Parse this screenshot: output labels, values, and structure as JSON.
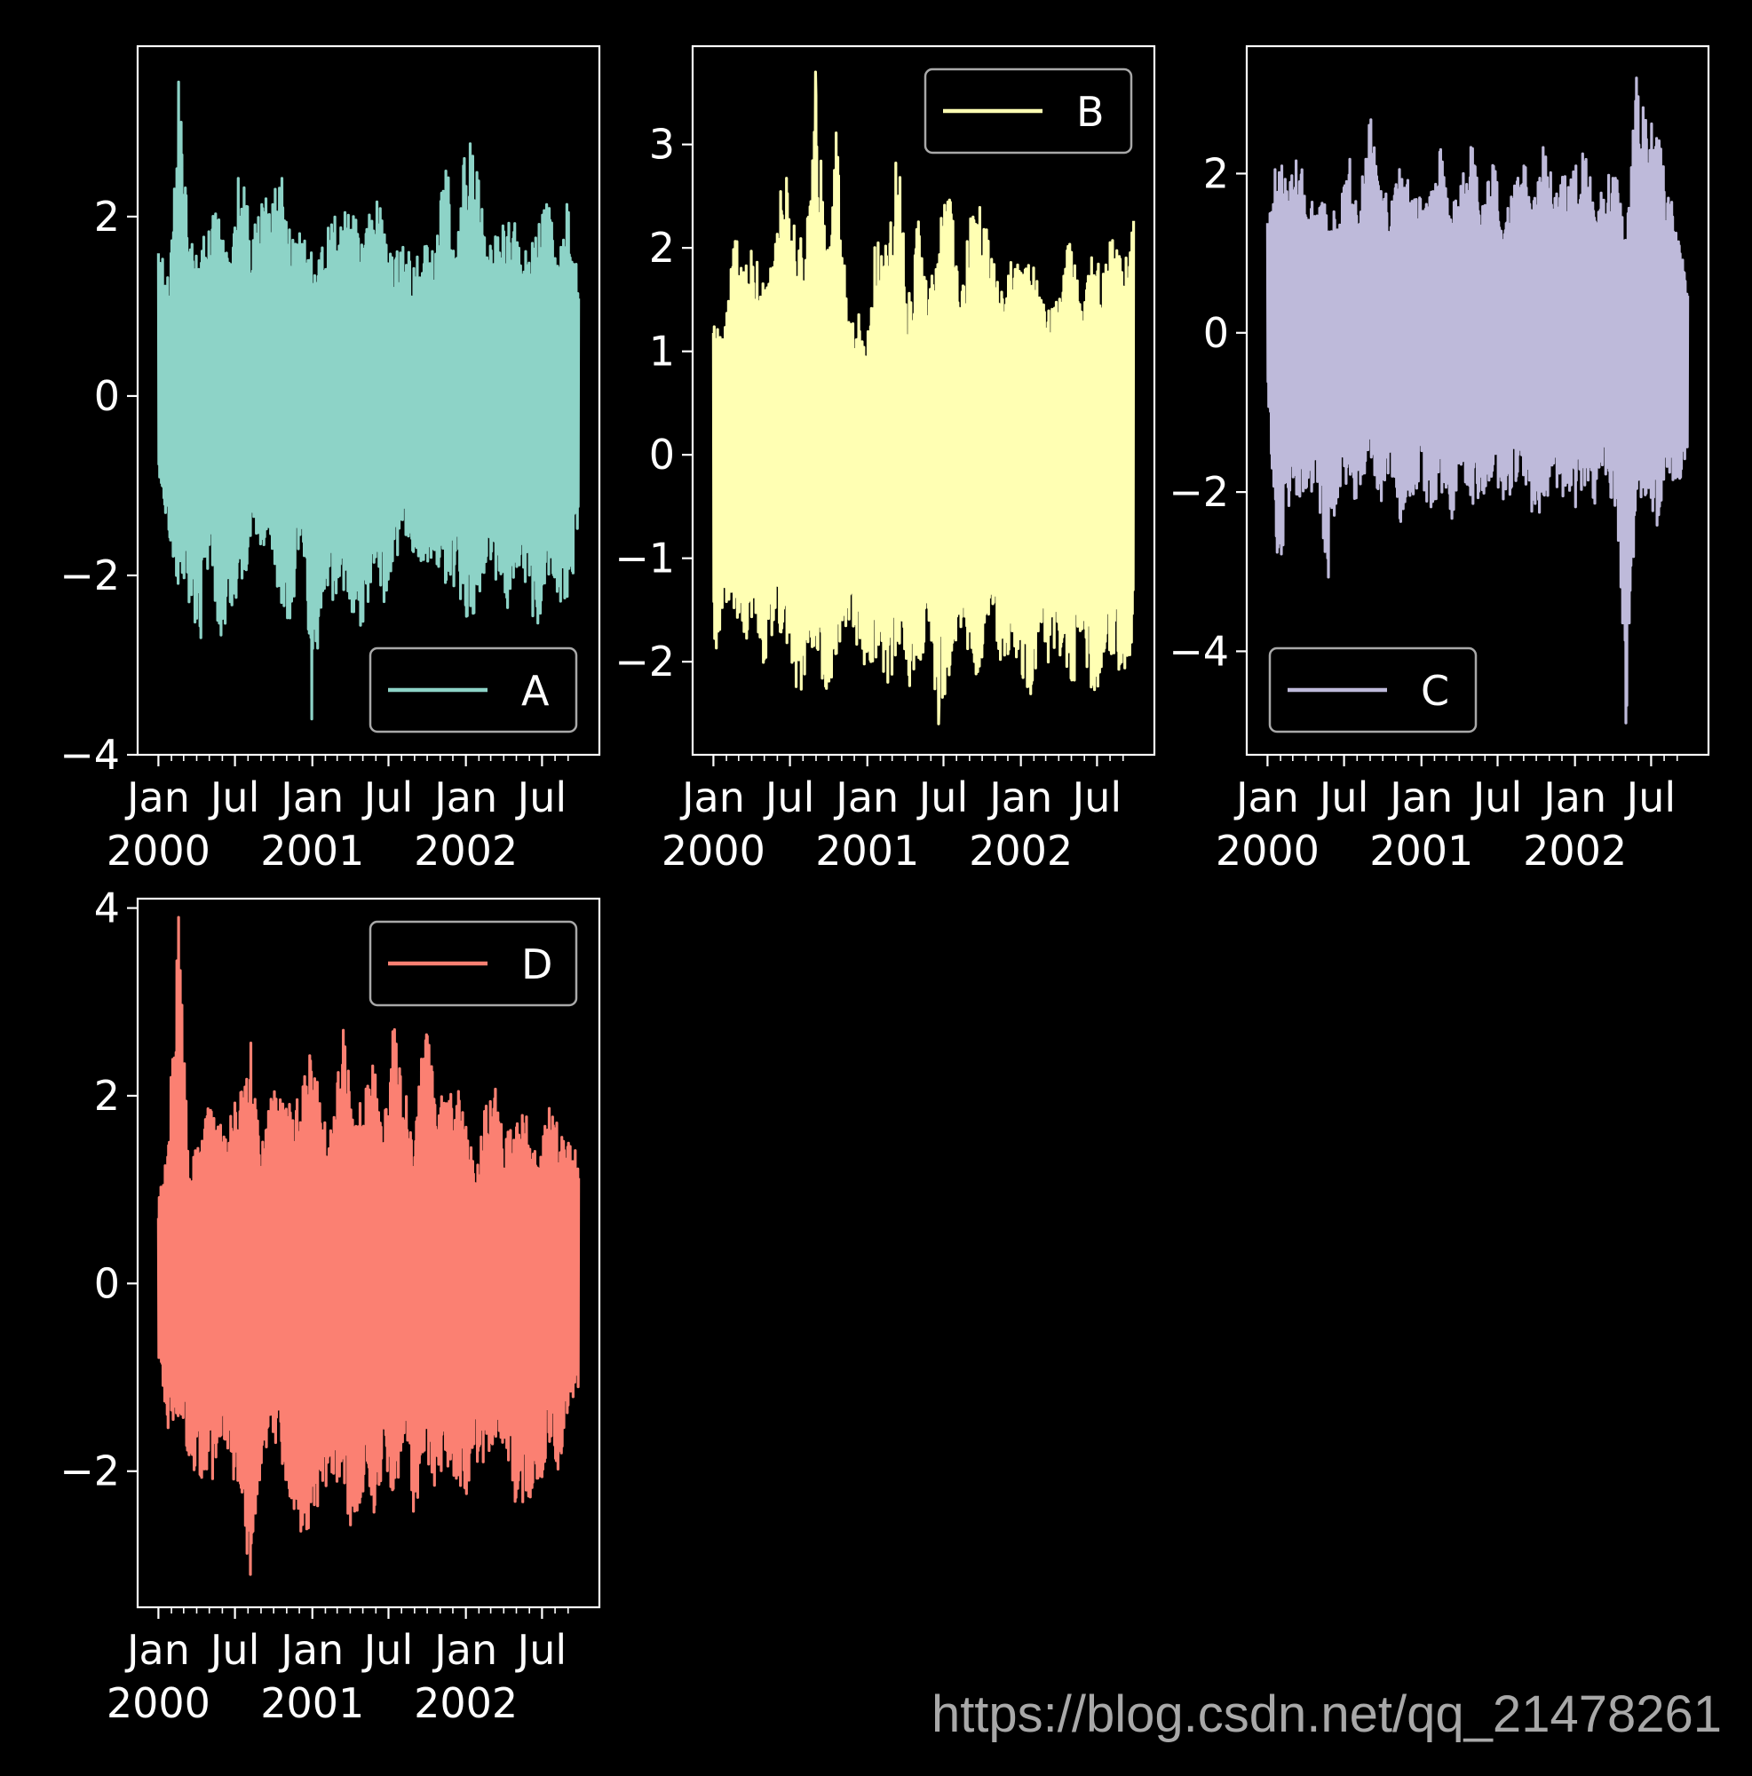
{
  "chart_data": [
    {
      "type": "line",
      "series": [
        {
          "name": "A",
          "color": "#8dd3c7"
        }
      ],
      "x_range": [
        "2000-01-01",
        "2002-09-26"
      ],
      "x_ticks": [
        {
          "month": "Jan",
          "year": "2000",
          "date": "2000-01-01"
        },
        {
          "month": "Jul",
          "year": "",
          "date": "2000-07-01"
        },
        {
          "month": "Jan",
          "year": "2001",
          "date": "2001-01-01"
        },
        {
          "month": "Jul",
          "year": "",
          "date": "2001-07-01"
        },
        {
          "month": "Jan",
          "year": "2002",
          "date": "2002-01-01"
        },
        {
          "month": "Jul",
          "year": "",
          "date": "2002-07-01"
        }
      ],
      "ylim": [
        -4,
        3.9
      ],
      "y_ticks": [
        -4,
        -2,
        0,
        2
      ],
      "y_tick_labels": [
        "−4",
        "−2",
        "0",
        "2"
      ],
      "envelope": {
        "upper": [
          1.7,
          1.3,
          3.5,
          1.8,
          1.6,
          2.1,
          2.0,
          1.5,
          2.7,
          1.9,
          2.3,
          2.1,
          2.7,
          1.8,
          1.9,
          1.6,
          1.8,
          2.0,
          2.2,
          2.1,
          1.7,
          2.5,
          1.9,
          1.6,
          1.7,
          1.5,
          1.7,
          1.6,
          2.8,
          1.7,
          2.9,
          2.8,
          1.6,
          1.8,
          2.0,
          1.9,
          1.6,
          1.9,
          2.2,
          1.5,
          2.4,
          1.2
        ],
        "lower": [
          -1.0,
          -1.6,
          -2.2,
          -2.3,
          -2.9,
          -1.7,
          -2.8,
          -2.4,
          -2.5,
          -1.6,
          -1.7,
          -1.7,
          -2.5,
          -2.6,
          -1.4,
          -3.6,
          -2.3,
          -2.4,
          -2.2,
          -2.5,
          -2.6,
          -2.1,
          -2.3,
          -2.0,
          -1.6,
          -1.8,
          -1.9,
          -2.1,
          -2.1,
          -2.2,
          -2.5,
          -2.6,
          -1.8,
          -2.1,
          -2.4,
          -2.0,
          -2.2,
          -2.7,
          -2.0,
          -2.3,
          -2.4,
          -1.5
        ]
      },
      "extremes": {
        "max": 3.5,
        "min": -3.6
      },
      "legend_loc": "lower right"
    },
    {
      "type": "line",
      "series": [
        {
          "name": "B",
          "color": "#ffffb3"
        }
      ],
      "x_range": [
        "2000-01-01",
        "2002-09-26"
      ],
      "x_ticks": [
        {
          "month": "Jan",
          "year": "2000",
          "date": "2000-01-01"
        },
        {
          "month": "Jul",
          "year": "",
          "date": "2000-07-01"
        },
        {
          "month": "Jan",
          "year": "2001",
          "date": "2001-01-01"
        },
        {
          "month": "Jul",
          "year": "",
          "date": "2001-07-01"
        },
        {
          "month": "Jan",
          "year": "2002",
          "date": "2002-01-01"
        },
        {
          "month": "Jul",
          "year": "",
          "date": "2002-07-01"
        }
      ],
      "ylim": [
        -2.9,
        3.95
      ],
      "y_ticks": [
        -2,
        -1,
        0,
        1,
        2,
        3
      ],
      "y_tick_labels": [
        "−2",
        "−1",
        "0",
        "1",
        "2",
        "3"
      ],
      "envelope": {
        "upper": [
          1.3,
          1.1,
          2.2,
          1.9,
          2.0,
          1.6,
          2.1,
          2.9,
          2.2,
          2.1,
          3.7,
          2.0,
          3.2,
          1.5,
          1.4,
          1.2,
          2.3,
          2.0,
          3.1,
          1.5,
          2.4,
          1.6,
          2.2,
          2.9,
          1.7,
          2.3,
          2.4,
          2.1,
          1.5,
          2.1,
          1.8,
          1.9,
          1.6,
          1.4,
          1.7,
          2.3,
          1.3,
          2.1,
          1.8,
          2.2,
          1.8,
          2.3
        ],
        "lower": [
          -2.2,
          -1.4,
          -1.5,
          -1.9,
          -1.5,
          -2.1,
          -1.7,
          -1.8,
          -2.3,
          -2.3,
          -1.8,
          -2.4,
          -2.2,
          -1.7,
          -1.9,
          -2.1,
          -2.0,
          -2.4,
          -1.8,
          -2.3,
          -2.2,
          -1.9,
          -2.6,
          -2.2,
          -1.7,
          -2.1,
          -2.3,
          -1.6,
          -2.0,
          -1.9,
          -2.1,
          -2.4,
          -1.9,
          -2.2,
          -2.0,
          -2.3,
          -1.8,
          -2.4,
          -2.1,
          -1.9,
          -2.3,
          -1.8
        ]
      },
      "extremes": {
        "max": 3.7,
        "min": -2.6
      },
      "legend_loc": "upper right"
    },
    {
      "type": "line",
      "series": [
        {
          "name": "C",
          "color": "#bebada"
        }
      ],
      "x_range": [
        "2000-01-01",
        "2002-09-26"
      ],
      "x_ticks": [
        {
          "month": "Jan",
          "year": "2000",
          "date": "2000-01-01"
        },
        {
          "month": "Jul",
          "year": "",
          "date": "2000-07-01"
        },
        {
          "month": "Jan",
          "year": "2001",
          "date": "2001-01-01"
        },
        {
          "month": "Jul",
          "year": "",
          "date": "2001-07-01"
        },
        {
          "month": "Jan",
          "year": "2002",
          "date": "2002-01-01"
        },
        {
          "month": "Jul",
          "year": "",
          "date": "2002-07-01"
        }
      ],
      "ylim": [
        -5.3,
        3.6
      ],
      "y_ticks": [
        -4,
        -2,
        0,
        2
      ],
      "y_tick_labels": [
        "−4",
        "−2",
        "0",
        "2"
      ],
      "envelope": {
        "upper": [
          1.4,
          2.3,
          1.9,
          2.3,
          1.8,
          1.6,
          1.7,
          1.6,
          2.2,
          1.7,
          2.8,
          2.0,
          1.7,
          2.2,
          1.9,
          1.7,
          2.0,
          2.4,
          1.6,
          2.1,
          2.4,
          1.6,
          2.3,
          1.4,
          1.9,
          2.2,
          1.7,
          2.5,
          1.8,
          2.0,
          2.1,
          2.3,
          1.6,
          1.9,
          2.2,
          1.3,
          3.2,
          2.9,
          2.6,
          1.9,
          1.4,
          0.6
        ],
        "lower": [
          -0.7,
          -3.0,
          -2.4,
          -2.1,
          -1.9,
          -2.2,
          -3.3,
          -1.9,
          -2.3,
          -2.0,
          -1.5,
          -2.2,
          -1.8,
          -2.4,
          -2.1,
          -1.9,
          -2.3,
          -2.0,
          -2.4,
          -1.8,
          -2.2,
          -2.1,
          -1.9,
          -2.3,
          -2.0,
          -1.8,
          -2.4,
          -2.2,
          -1.9,
          -2.1,
          -2.3,
          -2.0,
          -2.2,
          -1.9,
          -2.4,
          -4.9,
          -2.3,
          -2.0,
          -2.5,
          -1.7,
          -2.0,
          -1.6
        ]
      },
      "extremes": {
        "max": 3.2,
        "min": -4.9
      },
      "legend_loc": "lower left"
    },
    {
      "type": "line",
      "series": [
        {
          "name": "D",
          "color": "#fb8072"
        }
      ],
      "x_range": [
        "2000-01-01",
        "2002-09-26"
      ],
      "x_ticks": [
        {
          "month": "Jan",
          "year": "2000",
          "date": "2000-01-01"
        },
        {
          "month": "Jul",
          "year": "",
          "date": "2000-07-01"
        },
        {
          "month": "Jan",
          "year": "2001",
          "date": "2001-01-01"
        },
        {
          "month": "Jul",
          "year": "",
          "date": "2001-07-01"
        },
        {
          "month": "Jan",
          "year": "2002",
          "date": "2002-01-01"
        },
        {
          "month": "Jul",
          "year": "",
          "date": "2002-07-01"
        }
      ],
      "ylim": [
        -3.45,
        4.1
      ],
      "y_ticks": [
        -2,
        0,
        2,
        4
      ],
      "y_tick_labels": [
        "−2",
        "0",
        "2",
        "4"
      ],
      "envelope": {
        "upper": [
          0.9,
          1.8,
          3.9,
          1.2,
          1.6,
          2.0,
          1.7,
          1.8,
          2.1,
          2.6,
          1.5,
          2.1,
          2.0,
          1.9,
          2.1,
          2.6,
          1.7,
          1.8,
          2.8,
          1.9,
          2.0,
          2.4,
          1.7,
          2.9,
          2.1,
          1.6,
          2.8,
          2.4,
          1.9,
          2.2,
          1.7,
          1.2,
          2.0,
          2.1,
          1.6,
          1.8,
          1.9,
          1.4,
          2.0,
          1.7,
          1.5,
          1.4
        ],
        "lower": [
          -0.8,
          -1.6,
          -1.4,
          -1.9,
          -2.1,
          -2.2,
          -1.8,
          -1.9,
          -2.5,
          -3.1,
          -2.0,
          -1.7,
          -1.9,
          -2.4,
          -2.8,
          -2.6,
          -2.2,
          -2.1,
          -2.3,
          -2.7,
          -2.2,
          -2.6,
          -1.9,
          -2.4,
          -2.0,
          -2.5,
          -1.8,
          -2.2,
          -2.0,
          -2.1,
          -2.3,
          -1.9,
          -2.0,
          -1.6,
          -1.8,
          -2.5,
          -2.3,
          -2.5,
          -1.7,
          -2.2,
          -1.3,
          -1.1
        ]
      },
      "extremes": {
        "max": 3.9,
        "min": -3.1
      },
      "legend_loc": "upper right"
    }
  ],
  "style": {
    "background": "#000000",
    "foreground": "#ffffff",
    "legend_edge": "#a8a8a8"
  },
  "watermark": "https://blog.csdn.net/qq_21478261"
}
